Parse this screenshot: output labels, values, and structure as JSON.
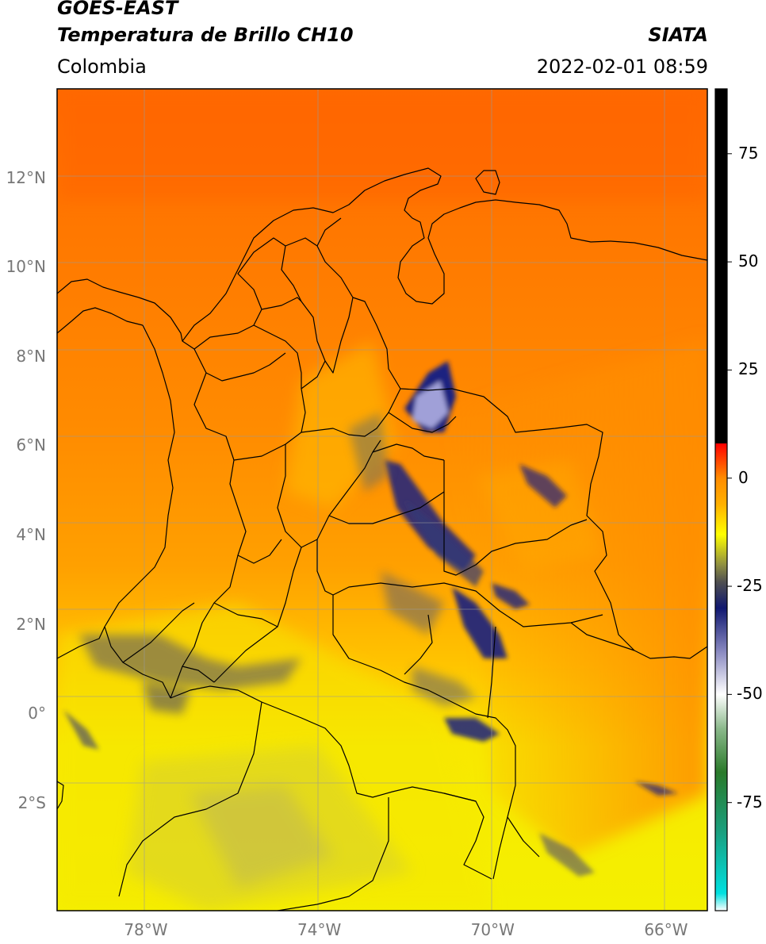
{
  "header": {
    "title_line1": "GOES-EAST",
    "title_line2": "Temperatura de Brillo CH10",
    "region": "Colombia",
    "source": "SIATA",
    "datetime": "2022-02-01 08:59"
  },
  "map": {
    "extent": {
      "lon_min": -80,
      "lon_max": -65,
      "lat_min": -4.4,
      "lat_max": 14.0
    },
    "lat_ticks": [
      {
        "value": 12,
        "label": "12°N"
      },
      {
        "value": 10,
        "label": "10°N"
      },
      {
        "value": 8,
        "label": "8°N"
      },
      {
        "value": 6,
        "label": "6°N"
      },
      {
        "value": 4,
        "label": "4°N"
      },
      {
        "value": 2,
        "label": "2°N"
      },
      {
        "value": 0,
        "label": "0°"
      },
      {
        "value": -2,
        "label": "2°S"
      }
    ],
    "lon_ticks": [
      {
        "value": -78,
        "label": "78°W"
      },
      {
        "value": -74,
        "label": "74°W"
      },
      {
        "value": -70,
        "label": "70°W"
      },
      {
        "value": -66,
        "label": "66°W"
      }
    ],
    "grid": true
  },
  "colorbar": {
    "range": [
      -100,
      90
    ],
    "ticks": [
      {
        "value": 75,
        "label": "75"
      },
      {
        "value": 50,
        "label": "50"
      },
      {
        "value": 25,
        "label": "25"
      },
      {
        "value": 0,
        "label": "0"
      },
      {
        "value": -25,
        "label": "-25"
      },
      {
        "value": -50,
        "label": "-50"
      },
      {
        "value": -75,
        "label": "-75"
      }
    ],
    "stops": [
      {
        "value": -100,
        "color": "#ffffff"
      },
      {
        "value": -96,
        "color": "#00e0e0"
      },
      {
        "value": -82,
        "color": "#1aa080"
      },
      {
        "value": -68,
        "color": "#2a7a2a"
      },
      {
        "value": -58,
        "color": "#8ab88a"
      },
      {
        "value": -50,
        "color": "#ffffff"
      },
      {
        "value": -40,
        "color": "#8888c0"
      },
      {
        "value": -30,
        "color": "#101870"
      },
      {
        "value": -24,
        "color": "#505050"
      },
      {
        "value": -20,
        "color": "#909040"
      },
      {
        "value": -13,
        "color": "#ffff00"
      },
      {
        "value": -6,
        "color": "#ffb000"
      },
      {
        "value": 0,
        "color": "#ff8c00"
      },
      {
        "value": 8,
        "color": "#ff0000"
      },
      {
        "value": 8.01,
        "color": "#000000"
      },
      {
        "value": 90,
        "color": "#000000"
      }
    ]
  }
}
